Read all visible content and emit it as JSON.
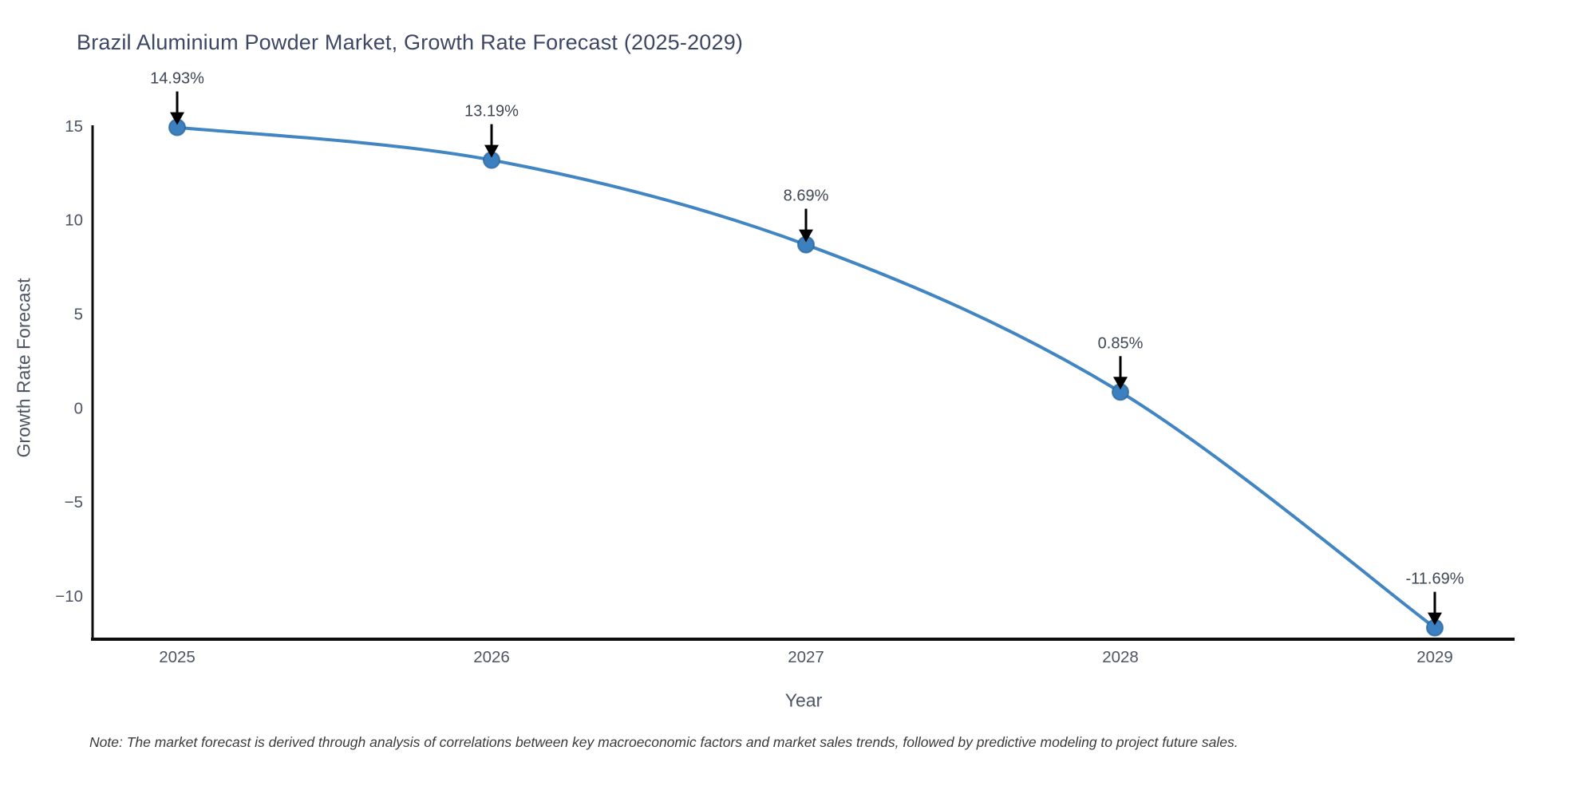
{
  "note": "Note: The market forecast is derived through analysis of correlations between key macroeconomic factors and market sales trends, followed by predictive modeling to project future sales.",
  "chart_data": {
    "type": "line",
    "title": "Brazil Aluminium Powder Market, Growth Rate Forecast (2025-2029)",
    "xlabel": "Year",
    "ylabel": "Growth Rate Forecast",
    "categories": [
      "2025",
      "2026",
      "2027",
      "2028",
      "2029"
    ],
    "values": [
      14.93,
      13.19,
      8.69,
      0.85,
      -11.69
    ],
    "point_labels": [
      "14.93%",
      "13.19%",
      "8.69%",
      "0.85%",
      "-11.69%"
    ],
    "ytick_values": [
      15,
      10,
      5,
      0,
      -5,
      -10
    ],
    "ytick_labels": [
      "15",
      "10",
      "5",
      "0",
      "−5",
      "−10"
    ],
    "ylim": [
      -12.3,
      15.55
    ],
    "line_shape": "spline",
    "grid": false,
    "legend": "none",
    "colors": {
      "line": "#4185c2",
      "marker_fill": "#3c80bf",
      "marker_edge": "#2a649c",
      "axis_line": "#0d0d0d",
      "annotation_arrow": "#000000",
      "annotation_text": "#3f4757",
      "tick_text": "#4d5463",
      "title_text": "#3d4663"
    }
  }
}
